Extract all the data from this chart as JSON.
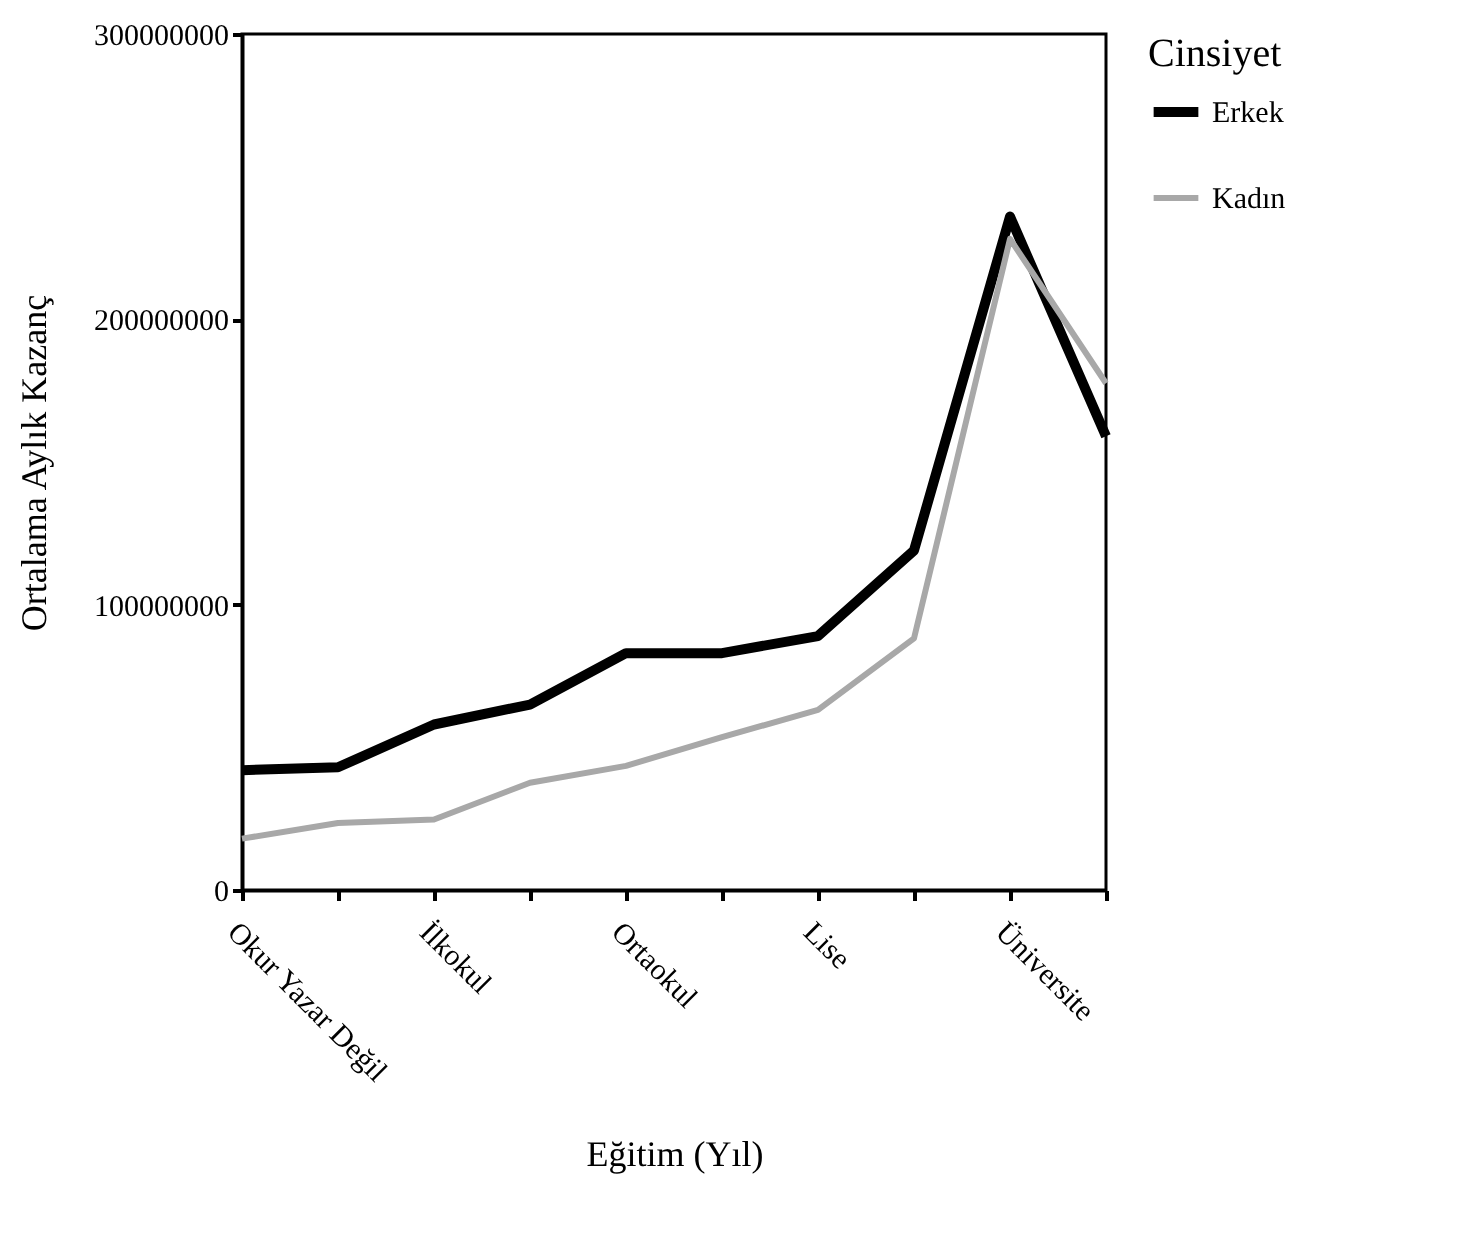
{
  "chart_data": {
    "type": "line",
    "xlabel": "Eğitim (Yıl)",
    "ylabel": "Ortalama Aylık Kazanç",
    "legend_title": "Cinsiyet",
    "categories": [
      "Okur Yazar Değil",
      null,
      "İlkokul",
      null,
      "Ortaokul",
      null,
      "Lise",
      null,
      "Üniversite",
      null
    ],
    "series": [
      {
        "name": "Erkek",
        "color": "#000000",
        "values": [
          42000000,
          43000000,
          58000000,
          65000000,
          83000000,
          83000000,
          89000000,
          119000000,
          236000000,
          159000000
        ]
      },
      {
        "name": "Kadın",
        "color": "#a8a8a8",
        "values": [
          18000000,
          23500000,
          24700000,
          37600000,
          43500000,
          53600000,
          63100000,
          88200000,
          228200000,
          177600000
        ]
      }
    ],
    "ylim": [
      0,
      300000000
    ],
    "yticks": [
      0,
      100000000,
      200000000,
      300000000
    ],
    "grid": false,
    "legend": "right",
    "marker": "none",
    "line_style": "solid"
  }
}
